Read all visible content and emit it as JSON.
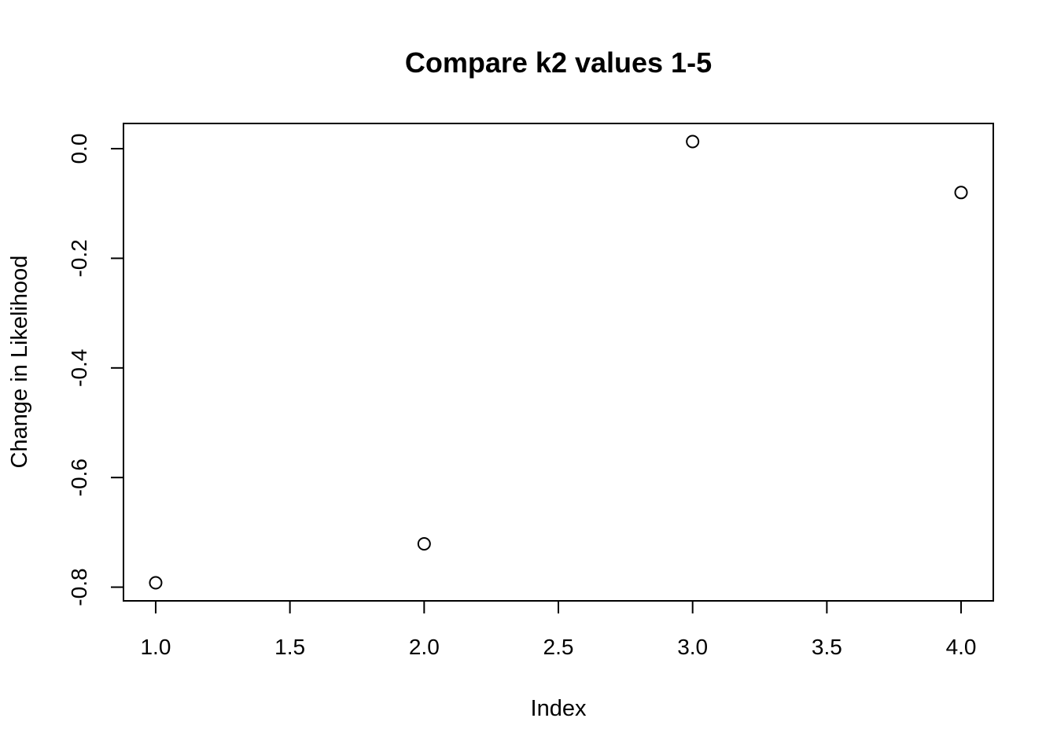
{
  "chart_data": {
    "type": "scatter",
    "title": "Compare k2 values 1-5",
    "xlabel": "Index",
    "ylabel": "Change in Likelihood",
    "x": [
      1,
      2,
      3,
      4
    ],
    "y": [
      -0.792,
      -0.721,
      0.013,
      -0.08
    ],
    "xlim": [
      0.88,
      4.12
    ],
    "ylim": [
      -0.825,
      0.046
    ],
    "xticks": [
      1.0,
      1.5,
      2.0,
      2.5,
      3.0,
      3.5,
      4.0
    ],
    "xtick_labels": [
      "1.0",
      "1.5",
      "2.0",
      "2.5",
      "3.0",
      "3.5",
      "4.0"
    ],
    "yticks": [
      0.0,
      -0.2,
      -0.4,
      -0.6,
      -0.8
    ],
    "ytick_labels": [
      "0.0",
      "-0.2",
      "-0.4",
      "-0.6",
      "-0.8"
    ],
    "grid": false,
    "marker": "open-circle",
    "color": "#000000"
  }
}
